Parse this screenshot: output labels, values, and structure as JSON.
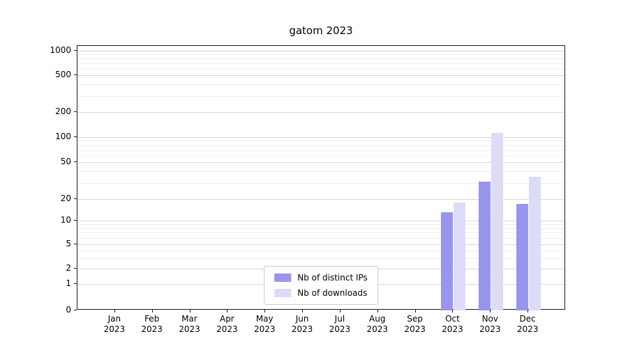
{
  "chart_data": {
    "type": "bar",
    "title": "gatom 2023",
    "categories": [
      "Jan 2023",
      "Feb 2023",
      "Mar 2023",
      "Apr 2023",
      "May 2023",
      "Jun 2023",
      "Jul 2023",
      "Aug 2023",
      "Sep 2023",
      "Oct 2023",
      "Nov 2023",
      "Dec 2023"
    ],
    "x_tick_labels_line1": [
      "Jan",
      "Feb",
      "Mar",
      "Apr",
      "May",
      "Jun",
      "Jul",
      "Aug",
      "Sep",
      "Oct",
      "Nov",
      "Dec"
    ],
    "x_tick_labels_line2": [
      "2023",
      "2023",
      "2023",
      "2023",
      "2023",
      "2023",
      "2023",
      "2023",
      "2023",
      "2023",
      "2023",
      "2023"
    ],
    "series": [
      {
        "name": "Nb of distinct IPs",
        "color": "#9895ec",
        "values": [
          0,
          0,
          0,
          0,
          0,
          0,
          0,
          0,
          0,
          13,
          31,
          17
        ]
      },
      {
        "name": "Nb of downloads",
        "color": "#dcdcf9",
        "values": [
          0,
          0,
          0,
          0,
          0,
          0,
          0,
          0,
          0,
          18,
          112,
          35
        ]
      }
    ],
    "y_ticks": [
      0,
      1,
      2,
      5,
      10,
      20,
      50,
      100,
      200,
      500,
      1000
    ],
    "y_scale": "log-like",
    "ylim": [
      0,
      1300
    ],
    "grid": true,
    "legend": {
      "position": "lower-center"
    }
  }
}
